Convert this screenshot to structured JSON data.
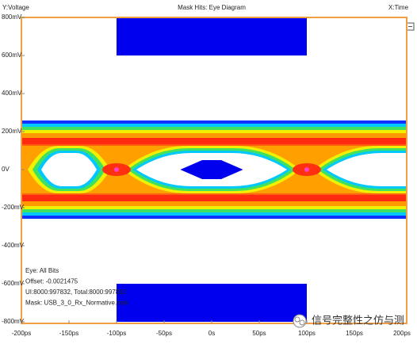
{
  "chart_data": {
    "type": "eye_diagram",
    "title": "Mask Hits: Eye Diagram",
    "ylabel": "Y:Voltage",
    "xlabel": "X:Time",
    "xlim": [
      -200,
      200
    ],
    "ylim": [
      -800,
      800
    ],
    "xticks": [
      {
        "value": -200,
        "label": "-200ps"
      },
      {
        "value": -150,
        "label": "-150ps"
      },
      {
        "value": -100,
        "label": "-100ps"
      },
      {
        "value": -50,
        "label": "-50ps"
      },
      {
        "value": 0,
        "label": "0s"
      },
      {
        "value": 50,
        "label": "50ps"
      },
      {
        "value": 100,
        "label": "100ps"
      },
      {
        "value": 150,
        "label": "150ps"
      },
      {
        "value": 200,
        "label": "200ps"
      }
    ],
    "yticks": [
      {
        "value": 800,
        "label": "800mV"
      },
      {
        "value": 600,
        "label": "600mV"
      },
      {
        "value": 400,
        "label": "400mV"
      },
      {
        "value": 200,
        "label": "200mV"
      },
      {
        "value": 0,
        "label": "0V"
      },
      {
        "value": -200,
        "label": "-200mV"
      },
      {
        "value": -400,
        "label": "-400mV"
      },
      {
        "value": -600,
        "label": "-600mV"
      },
      {
        "value": -800,
        "label": "-800mV"
      }
    ],
    "grid": false,
    "mask_color": "#0000ee",
    "masks": [
      {
        "x": [
          -100,
          100,
          100,
          -100
        ],
        "y": [
          600,
          600,
          800,
          800
        ]
      },
      {
        "x": [
          -33,
          -10,
          10,
          33,
          10,
          -10
        ],
        "y": [
          0,
          50,
          50,
          0,
          -50,
          -50
        ]
      },
      {
        "x": [
          -100,
          100,
          100,
          -100
        ],
        "y": [
          -600,
          -600,
          -800,
          -800
        ]
      }
    ],
    "info": [
      "Eye: All Bits",
      "Offset: -0.0021475",
      "UI:8000:997832, Total:8000:997832",
      "Mask: USB_3_0_Rx_Normative.msk"
    ],
    "watermark": "信号完整性之仿与测"
  }
}
